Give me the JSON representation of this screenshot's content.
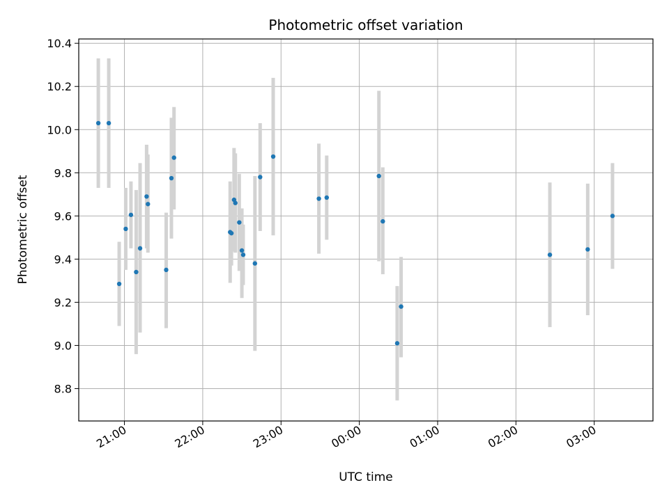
{
  "chart_data": {
    "type": "scatter",
    "title": "Photometric offset variation",
    "xlabel": "UTC time",
    "ylabel": "Photometric offset",
    "x_unit": "UTC time (HH:MM)",
    "xlim": [
      "20:25",
      "03:45"
    ],
    "ylim": [
      8.65,
      10.42
    ],
    "grid": true,
    "x_ticks": [
      "21:00",
      "22:00",
      "23:00",
      "00:00",
      "01:00",
      "02:00",
      "03:00"
    ],
    "y_ticks": [
      8.8,
      9.0,
      9.2,
      9.4,
      9.6,
      9.8,
      10.0,
      10.2,
      10.4
    ],
    "x_tick_labels": [
      "21:00",
      "22:00",
      "23:00",
      "00:00",
      "01:00",
      "02:00",
      "03:00"
    ],
    "y_tick_labels": [
      "8.8",
      "9.0",
      "9.2",
      "9.4",
      "9.6",
      "9.8",
      "10.0",
      "10.2",
      "10.4"
    ],
    "point_color": "#1f77b4",
    "errorbar_color": "#d3d3d3",
    "points": [
      {
        "x": "20:40",
        "y": 10.03,
        "err_low": 9.73,
        "err_high": 10.33
      },
      {
        "x": "20:48",
        "y": 10.03,
        "err_low": 9.73,
        "err_high": 10.33
      },
      {
        "x": "20:56",
        "y": 9.285,
        "err_low": 9.09,
        "err_high": 9.48
      },
      {
        "x": "21:01",
        "y": 9.54,
        "err_low": 9.35,
        "err_high": 9.73
      },
      {
        "x": "21:05",
        "y": 9.605,
        "err_low": 9.45,
        "err_high": 9.76
      },
      {
        "x": "21:09",
        "y": 9.34,
        "err_low": 8.96,
        "err_high": 9.72
      },
      {
        "x": "21:12",
        "y": 9.45,
        "err_low": 9.06,
        "err_high": 9.845
      },
      {
        "x": "21:17",
        "y": 9.69,
        "err_low": 9.45,
        "err_high": 9.93
      },
      {
        "x": "21:18",
        "y": 9.655,
        "err_low": 9.43,
        "err_high": 9.885
      },
      {
        "x": "21:32",
        "y": 9.35,
        "err_low": 9.08,
        "err_high": 9.615
      },
      {
        "x": "21:36",
        "y": 9.775,
        "err_low": 9.495,
        "err_high": 10.055
      },
      {
        "x": "21:38",
        "y": 9.87,
        "err_low": 9.63,
        "err_high": 10.105
      },
      {
        "x": "22:21",
        "y": 9.525,
        "err_low": 9.29,
        "err_high": 9.76
      },
      {
        "x": "22:22",
        "y": 9.52,
        "err_low": 9.37,
        "err_high": 9.67
      },
      {
        "x": "22:24",
        "y": 9.675,
        "err_low": 9.435,
        "err_high": 9.915
      },
      {
        "x": "22:25",
        "y": 9.66,
        "err_low": 9.43,
        "err_high": 9.89
      },
      {
        "x": "22:28",
        "y": 9.57,
        "err_low": 9.345,
        "err_high": 9.795
      },
      {
        "x": "22:30",
        "y": 9.44,
        "err_low": 9.22,
        "err_high": 9.635
      },
      {
        "x": "22:31",
        "y": 9.42,
        "err_low": 9.28,
        "err_high": 9.56
      },
      {
        "x": "22:40",
        "y": 9.38,
        "err_low": 8.975,
        "err_high": 9.785
      },
      {
        "x": "22:44",
        "y": 9.78,
        "err_low": 9.53,
        "err_high": 10.03
      },
      {
        "x": "22:54",
        "y": 9.875,
        "err_low": 9.51,
        "err_high": 10.24
      },
      {
        "x": "23:29",
        "y": 9.68,
        "err_low": 9.425,
        "err_high": 9.935
      },
      {
        "x": "23:35",
        "y": 9.685,
        "err_low": 9.49,
        "err_high": 9.88
      },
      {
        "x": "00:15",
        "y": 9.785,
        "err_low": 9.39,
        "err_high": 10.18
      },
      {
        "x": "00:18",
        "y": 9.575,
        "err_low": 9.33,
        "err_high": 9.825
      },
      {
        "x": "00:29",
        "y": 9.01,
        "err_low": 8.745,
        "err_high": 9.275
      },
      {
        "x": "00:32",
        "y": 9.18,
        "err_low": 8.945,
        "err_high": 9.41
      },
      {
        "x": "02:26",
        "y": 9.42,
        "err_low": 9.085,
        "err_high": 9.755
      },
      {
        "x": "02:55",
        "y": 9.445,
        "err_low": 9.14,
        "err_high": 9.75
      },
      {
        "x": "03:14",
        "y": 9.6,
        "err_low": 9.355,
        "err_high": 9.845
      }
    ]
  }
}
